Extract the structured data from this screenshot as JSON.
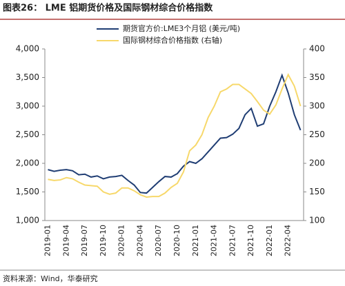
{
  "chart_data": {
    "type": "line",
    "title": "图表26： LME 铝期货价格及国际钢材综合价格指数",
    "source": "资料来源：Wind，华泰研究",
    "categories": [
      "2019-01",
      null,
      null,
      "2019-04",
      null,
      null,
      "2019-07",
      null,
      null,
      "2019-10",
      null,
      null,
      "2020-01",
      null,
      null,
      "2020-04",
      null,
      null,
      "2020-07",
      null,
      null,
      "2020-10",
      null,
      null,
      "2021-01",
      null,
      null,
      "2021-04",
      null,
      null,
      "2021-07",
      null,
      null,
      "2021-10",
      null,
      null,
      "2022-01",
      null,
      null,
      "2022-04",
      null,
      null
    ],
    "series": [
      {
        "name": "期货官方价:LME3个月铝 (美元/吨)",
        "color": "#1f3d73",
        "values": [
          1890,
          1860,
          1880,
          1890,
          1870,
          1800,
          1810,
          1760,
          1780,
          1730,
          1760,
          1770,
          1790,
          1700,
          1620,
          1490,
          1480,
          1580,
          1680,
          1770,
          1760,
          1820,
          1950,
          2030,
          2000,
          2080,
          2200,
          2320,
          2440,
          2450,
          2510,
          2610,
          2850,
          2960,
          2650,
          2690,
          3000,
          3250,
          3540,
          3230,
          2850,
          2580
        ]
      },
      {
        "name": "国际钢材综合价格指数 (右轴)",
        "color": "#f7d86a",
        "axis": "y2",
        "values": [
          172,
          170,
          171,
          175,
          173,
          167,
          162,
          161,
          160,
          150,
          146,
          148,
          157,
          157,
          152,
          145,
          141,
          142,
          142,
          148,
          158,
          165,
          185,
          222,
          232,
          250,
          280,
          300,
          325,
          330,
          338,
          338,
          330,
          322,
          308,
          293,
          286,
          302,
          330,
          355,
          335,
          300
        ]
      }
    ],
    "ylim": [
      1000,
      4000
    ],
    "yticks": [
      {
        "value": 1000,
        "label": "1,000"
      },
      {
        "value": 1500,
        "label": "1,500"
      },
      {
        "value": 2000,
        "label": "2,000"
      },
      {
        "value": 2500,
        "label": "2,500"
      },
      {
        "value": 3000,
        "label": "3,000"
      },
      {
        "value": 3500,
        "label": "3,500"
      },
      {
        "value": 4000,
        "label": "4,000"
      }
    ],
    "y2lim": [
      100,
      400
    ],
    "y2ticks": [
      100,
      150,
      200,
      250,
      300,
      350,
      400
    ],
    "grid": false,
    "legend": "top"
  }
}
